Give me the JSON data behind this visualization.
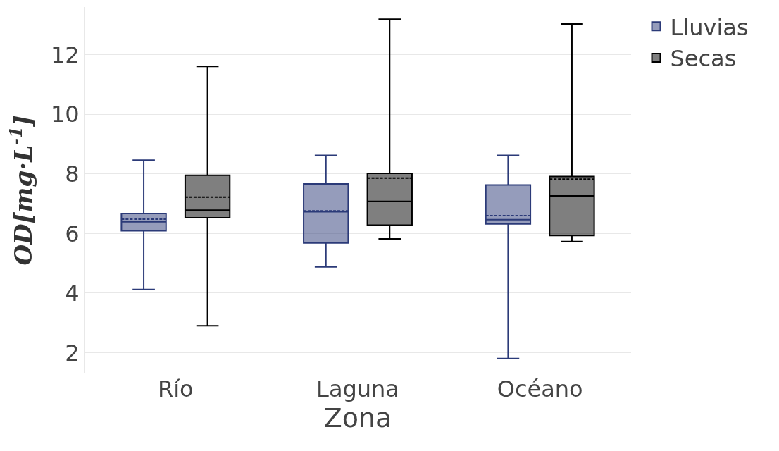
{
  "chart_data": {
    "type": "box",
    "categories": [
      "Río",
      "Laguna",
      "Océano"
    ],
    "xlabel": "Zona",
    "ylabel": "OD[mg·L$^{-1}$]",
    "yticks": [
      2,
      4,
      6,
      8,
      10,
      12
    ],
    "ylim": [
      1.3,
      13.6
    ],
    "grid": "y",
    "legend": "top right",
    "series": [
      {
        "name": "Lluvias",
        "color": "#2b3a78",
        "boxes": [
          {
            "low": 4.12,
            "q1": 6.09,
            "median": 6.39,
            "q3": 6.67,
            "high": 8.46,
            "mean": 6.48
          },
          {
            "low": 4.88,
            "q1": 5.68,
            "median": 6.73,
            "q3": 7.66,
            "high": 8.62,
            "mean": 6.76
          },
          {
            "low": 1.8,
            "q1": 6.32,
            "median": 6.46,
            "q3": 7.63,
            "high": 8.62,
            "mean": 6.6
          }
        ]
      },
      {
        "name": "Secas",
        "color": "#000000",
        "boxes": [
          {
            "low": 2.9,
            "q1": 6.53,
            "median": 6.78,
            "q3": 7.95,
            "high": 11.61,
            "mean": 7.22
          },
          {
            "low": 5.82,
            "q1": 6.28,
            "median": 7.08,
            "q3": 8.02,
            "high": 13.19,
            "mean": 7.86
          },
          {
            "low": 5.73,
            "q1": 5.93,
            "median": 7.26,
            "q3": 7.91,
            "high": 13.03,
            "mean": 7.82
          }
        ]
      }
    ]
  }
}
